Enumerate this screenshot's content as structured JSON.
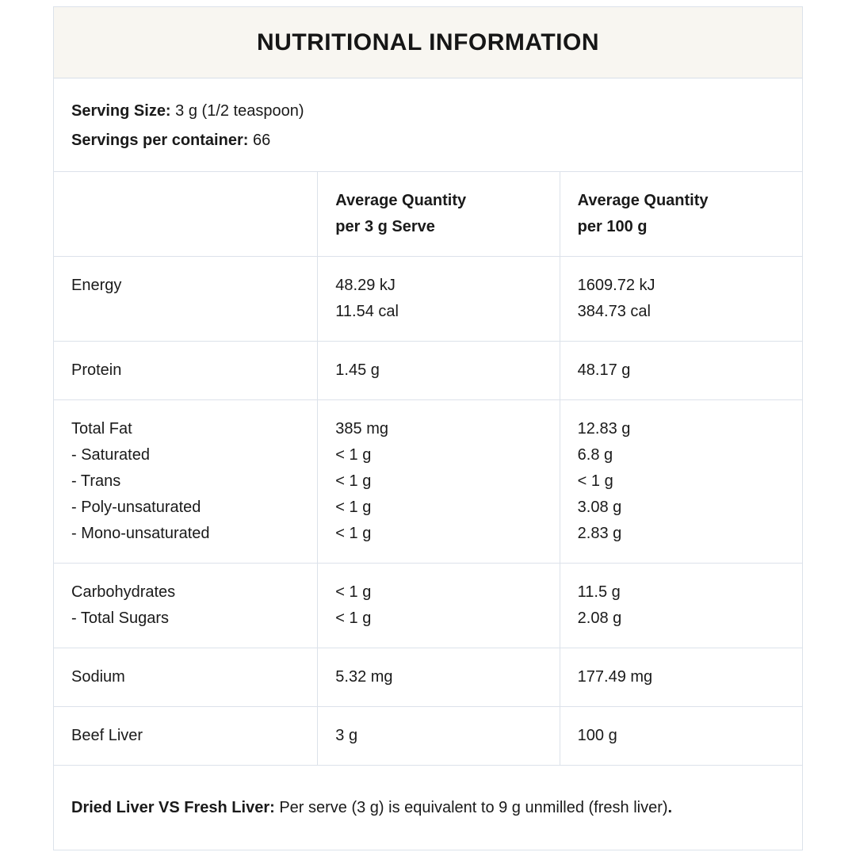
{
  "colors": {
    "title_bar_background": "#f8f6f1",
    "border": "#dce2ea",
    "text": "#1a1a1a",
    "page_background": "#ffffff"
  },
  "title": "NUTRITIONAL INFORMATION",
  "serving_info": {
    "serving_size_label": "Serving Size:",
    "serving_size_value": "3 g (1/2 teaspoon)",
    "servings_per_container_label": "Servings per container:",
    "servings_per_container_value": "66"
  },
  "table": {
    "header": {
      "col1": "",
      "col2_line1": "Average Quantity",
      "col2_line2": "per 3 g Serve",
      "col3_line1": "Average Quantity",
      "col3_line2": "per 100 g"
    },
    "rows": [
      {
        "name": "energy",
        "labels": [
          "Energy"
        ],
        "serve": [
          "48.29 kJ",
          "11.54 cal"
        ],
        "per100": [
          "1609.72 kJ",
          "384.73 cal"
        ]
      },
      {
        "name": "protein",
        "labels": [
          "Protein"
        ],
        "serve": [
          "1.45 g"
        ],
        "per100": [
          "48.17 g"
        ]
      },
      {
        "name": "total-fat",
        "labels": [
          "Total Fat",
          "- Saturated",
          "- Trans",
          "- Poly-unsaturated",
          "- Mono-unsaturated"
        ],
        "serve": [
          "385 mg",
          "< 1 g",
          "< 1 g",
          "< 1 g",
          "< 1 g"
        ],
        "per100": [
          "12.83 g",
          "6.8 g",
          "< 1 g",
          "3.08 g",
          "2.83 g"
        ]
      },
      {
        "name": "carbohydrates",
        "labels": [
          "Carbohydrates",
          "- Total Sugars"
        ],
        "serve": [
          "< 1 g",
          "< 1 g"
        ],
        "per100": [
          "11.5 g",
          "2.08 g"
        ]
      },
      {
        "name": "sodium",
        "labels": [
          "Sodium"
        ],
        "serve": [
          "5.32 mg"
        ],
        "per100": [
          "177.49 mg"
        ]
      },
      {
        "name": "beef-liver",
        "labels": [
          "Beef Liver"
        ],
        "serve": [
          "3 g"
        ],
        "per100": [
          "100 g"
        ]
      }
    ]
  },
  "footnote": {
    "bold_label": "Dried Liver VS Fresh Liver:",
    "text": " Per serve (3 g) is equivalent to 9 g unmilled (fresh liver)",
    "bold_period": "."
  }
}
